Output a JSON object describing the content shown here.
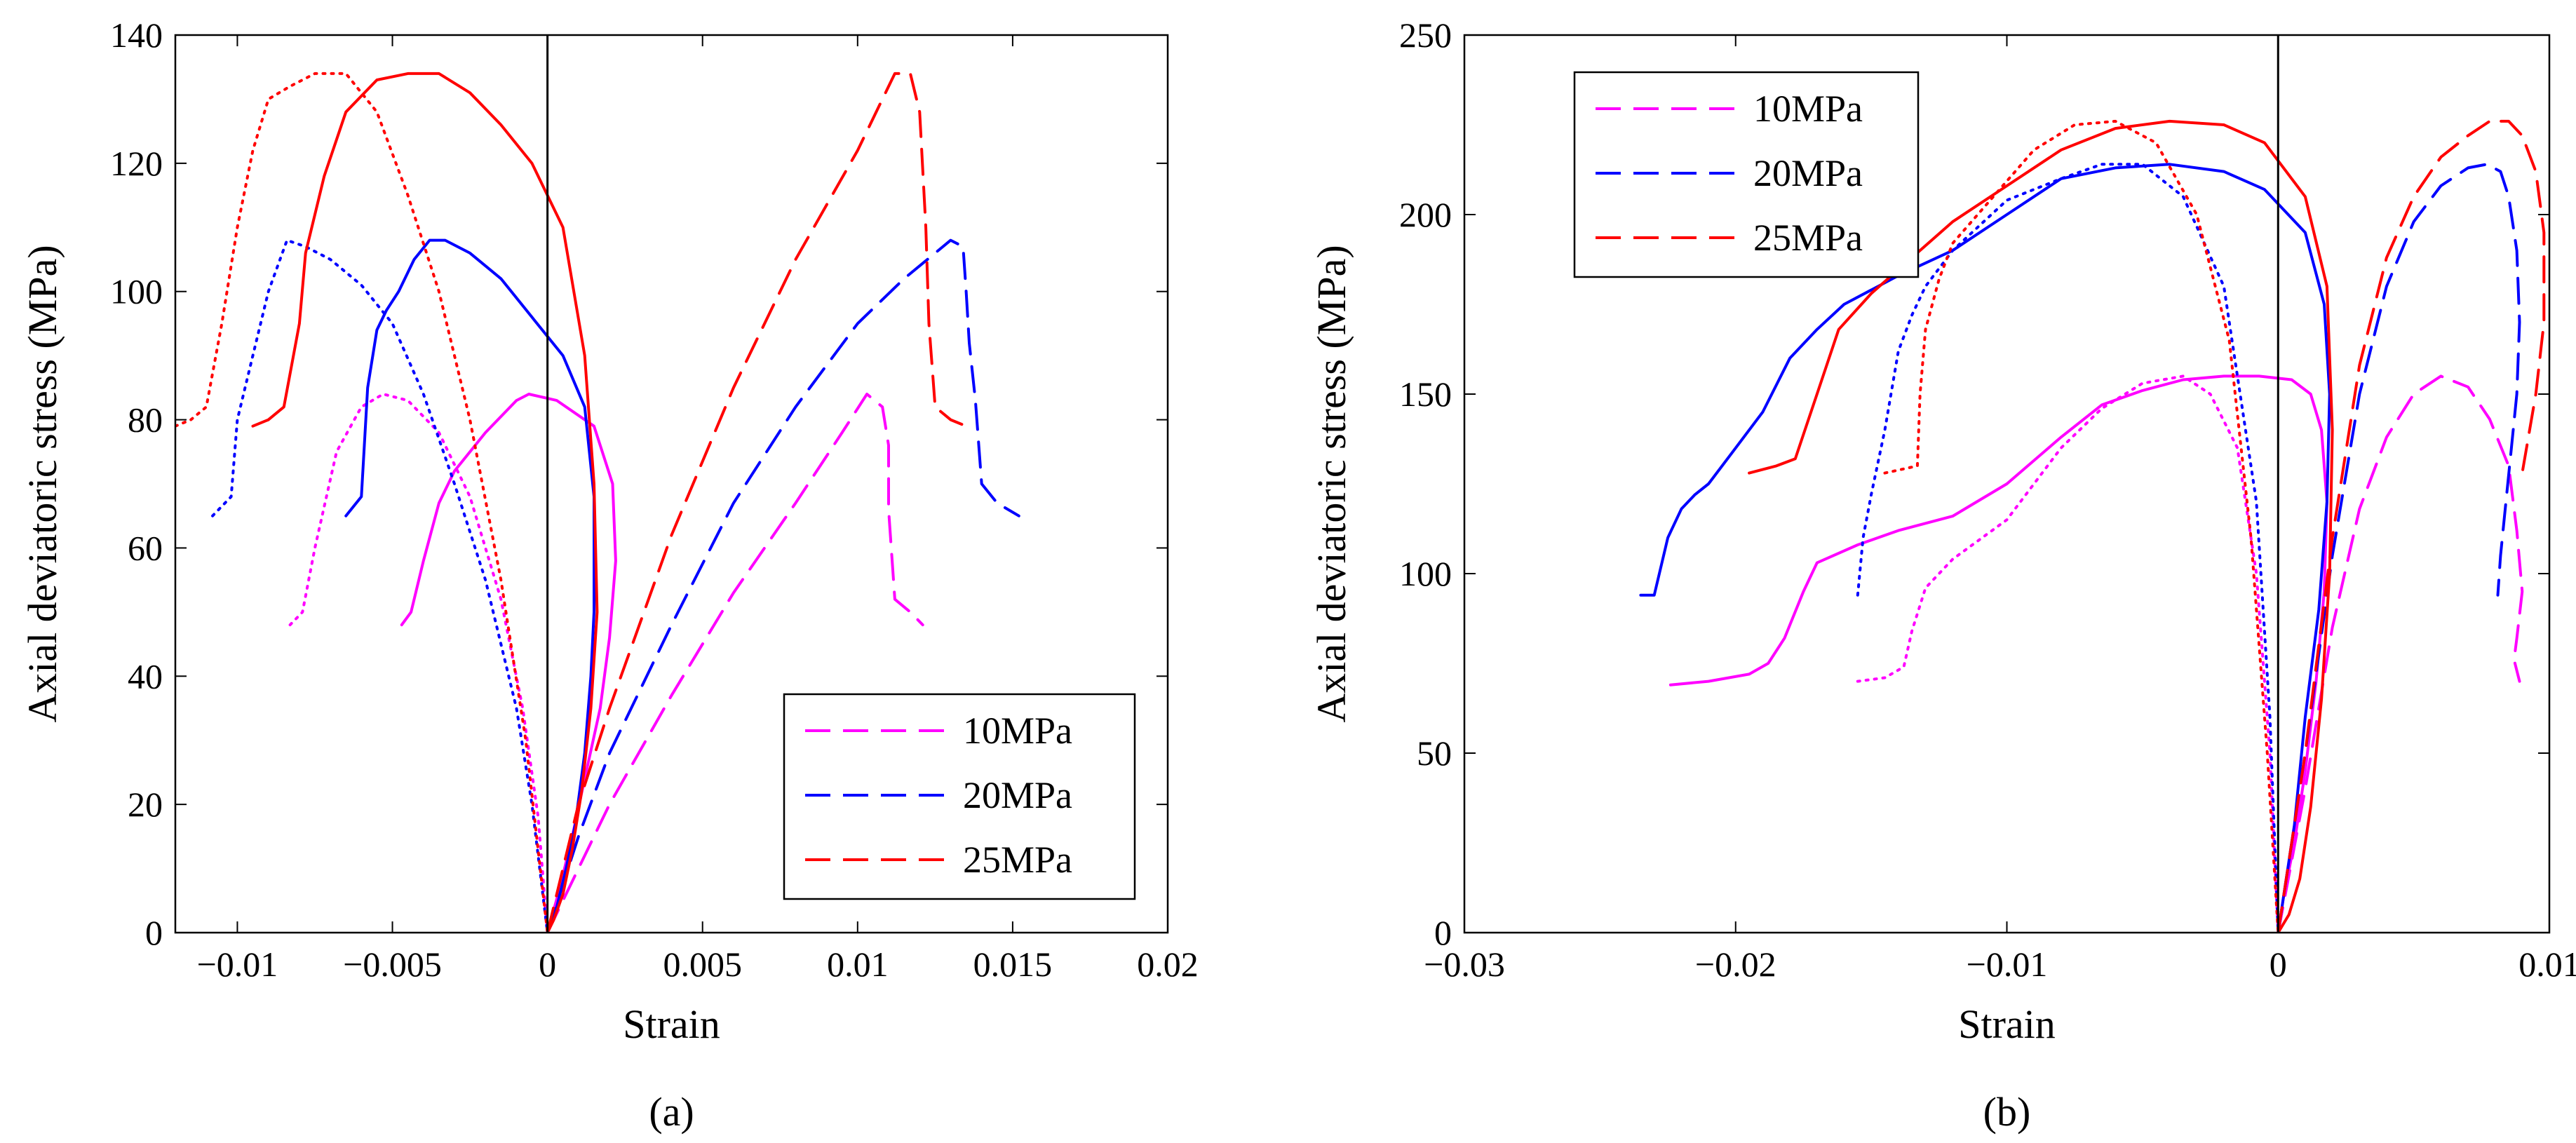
{
  "chart_data": [
    {
      "type": "line",
      "caption": "(a)",
      "xlabel": "Strain",
      "ylabel": "Axial deviatoric stress (MPa)",
      "xlim": [
        -0.012,
        0.02
      ],
      "ylim": [
        0,
        140
      ],
      "xticks": [
        -0.01,
        -0.005,
        0,
        0.005,
        0.01,
        0.015,
        0.02
      ],
      "xtick_labels": [
        "-0.01",
        "-0.005",
        "0",
        "0.005",
        "0.01",
        "0.015",
        "0.02"
      ],
      "yticks": [
        0,
        20,
        40,
        60,
        80,
        100,
        120,
        140
      ],
      "ytick_labels": [
        "0",
        "20",
        "40",
        "60",
        "80",
        "100",
        "120",
        "140"
      ],
      "legend": {
        "position": "lower-right",
        "entries": [
          {
            "label": "10MPa",
            "color": "#ff00ff"
          },
          {
            "label": "20MPa",
            "color": "#0000ff"
          },
          {
            "label": "25MPa",
            "color": "#ff0000"
          }
        ]
      },
      "zero_line": 0,
      "series": [
        {
          "name": "10MPa",
          "style": "dashed",
          "color": "#ff00ff",
          "x": [
            0,
            0.001,
            0.002,
            0.004,
            0.006,
            0.008,
            0.0095,
            0.0103,
            0.0108,
            0.011,
            0.011,
            0.0112,
            0.0117,
            0.0121
          ],
          "y": [
            0,
            10,
            20,
            37,
            53,
            67,
            78,
            84,
            82,
            76,
            66,
            52,
            50,
            48
          ]
        },
        {
          "name": "10MPa",
          "style": "solid",
          "color": "#ff00ff",
          "x": [
            -0.0047,
            -0.0044,
            -0.004,
            -0.0035,
            -0.003,
            -0.002,
            -0.001,
            -0.0006,
            0.0003,
            0.0015,
            0.0021,
            0.0022,
            0.002,
            0.0017,
            0.0012,
            0.0008,
            0.0004,
            0
          ],
          "y": [
            48,
            50,
            58,
            67,
            72,
            78,
            83,
            84,
            83,
            79,
            70,
            58,
            46,
            35,
            24,
            15,
            7,
            0
          ]
        },
        {
          "name": "10MPa",
          "style": "dotted",
          "color": "#ff00ff",
          "x": [
            -0.0083,
            -0.0079,
            -0.0075,
            -0.0068,
            -0.006,
            -0.0053,
            -0.0045,
            -0.0035,
            -0.0025,
            -0.0015,
            -0.0008,
            -0.0003,
            0
          ],
          "y": [
            48,
            50,
            60,
            75,
            82,
            84,
            83,
            78,
            68,
            52,
            35,
            18,
            0
          ]
        },
        {
          "name": "20MPa",
          "style": "dashed",
          "color": "#0000ff",
          "x": [
            0,
            0.001,
            0.002,
            0.004,
            0.006,
            0.008,
            0.01,
            0.0115,
            0.0125,
            0.013,
            0.0134,
            0.0135,
            0.0136,
            0.0138,
            0.014,
            0.0145,
            0.0152
          ],
          "y": [
            0,
            15,
            28,
            48,
            67,
            82,
            95,
            102,
            106,
            108,
            107,
            100,
            92,
            83,
            70,
            67,
            65
          ]
        },
        {
          "name": "20MPa",
          "style": "solid",
          "color": "#0000ff",
          "x": [
            -0.0065,
            -0.006,
            -0.0058,
            -0.0055,
            -0.0052,
            -0.0048,
            -0.0043,
            -0.0038,
            -0.0033,
            -0.0025,
            -0.0015,
            -0.0005,
            0.0005,
            0.0012,
            0.0015,
            0.0015,
            0.0014,
            0.0012,
            0.0009,
            0.0006,
            0.0003,
            0
          ],
          "y": [
            65,
            68,
            85,
            94,
            97,
            100,
            105,
            108,
            108,
            106,
            102,
            96,
            90,
            82,
            68,
            50,
            40,
            28,
            17,
            10,
            4,
            0
          ]
        },
        {
          "name": "20MPa",
          "style": "dotted",
          "color": "#0000ff",
          "x": [
            -0.0108,
            -0.0102,
            -0.01,
            -0.0095,
            -0.009,
            -0.0084,
            -0.0078,
            -0.007,
            -0.006,
            -0.005,
            -0.004,
            -0.003,
            -0.002,
            -0.001,
            -0.0005,
            0
          ],
          "y": [
            65,
            68,
            80,
            90,
            100,
            108,
            107,
            105,
            101,
            95,
            84,
            70,
            55,
            35,
            20,
            0
          ]
        },
        {
          "name": "25MPa",
          "style": "dashed",
          "color": "#ff0000",
          "x": [
            0,
            0.001,
            0.002,
            0.004,
            0.006,
            0.008,
            0.01,
            0.0108,
            0.0112,
            0.0117,
            0.012,
            0.0122,
            0.0123,
            0.0125,
            0.013,
            0.0135
          ],
          "y": [
            0,
            20,
            35,
            62,
            85,
            105,
            122,
            130,
            134,
            134,
            128,
            110,
            95,
            82,
            80,
            79
          ]
        },
        {
          "name": "25MPa",
          "style": "solid",
          "color": "#ff0000",
          "x": [
            -0.0095,
            -0.009,
            -0.0085,
            -0.008,
            -0.0078,
            -0.0072,
            -0.0065,
            -0.0055,
            -0.0045,
            -0.0035,
            -0.0025,
            -0.0015,
            -0.0005,
            0.0005,
            0.0012,
            0.0015,
            0.0016,
            0.0014,
            0.0011,
            0.0008,
            0.0005,
            0.0002,
            0
          ],
          "y": [
            79,
            80,
            82,
            95,
            106,
            118,
            128,
            133,
            134,
            134,
            131,
            126,
            120,
            110,
            90,
            70,
            50,
            35,
            22,
            13,
            6,
            2,
            0
          ]
        },
        {
          "name": "25MPa",
          "style": "dotted",
          "color": "#ff0000",
          "x": [
            -0.012,
            -0.0115,
            -0.011,
            -0.0105,
            -0.01,
            -0.0095,
            -0.009,
            -0.0083,
            -0.0075,
            -0.0065,
            -0.0055,
            -0.0045,
            -0.0035,
            -0.0025,
            -0.0015,
            -0.0007,
            0
          ],
          "y": [
            79,
            80,
            82,
            95,
            110,
            122,
            130,
            132,
            134,
            134,
            128,
            115,
            100,
            80,
            55,
            30,
            0
          ]
        }
      ]
    },
    {
      "type": "line",
      "caption": "(b)",
      "xlabel": "Strain",
      "ylabel": "Axial deviatoric stress (MPa)",
      "xlim": [
        -0.03,
        0.01
      ],
      "ylim": [
        0,
        250
      ],
      "xticks": [
        -0.03,
        -0.02,
        -0.01,
        0,
        0.01
      ],
      "xtick_labels": [
        "-0.03",
        "-0.02",
        "-0.01",
        "0",
        "0.01"
      ],
      "yticks": [
        0,
        50,
        100,
        150,
        200,
        250
      ],
      "ytick_labels": [
        "0",
        "50",
        "100",
        "150",
        "200",
        "250"
      ],
      "legend": {
        "position": "top-left",
        "entries": [
          {
            "label": "10MPa",
            "color": "#ff00ff"
          },
          {
            "label": "20MPa",
            "color": "#0000ff"
          },
          {
            "label": "25MPa",
            "color": "#ff0000"
          }
        ]
      },
      "zero_line": 0,
      "series": [
        {
          "name": "10MPa",
          "style": "dashed",
          "color": "#ff00ff",
          "x": [
            0,
            0.001,
            0.002,
            0.003,
            0.004,
            0.005,
            0.006,
            0.007,
            0.0078,
            0.0085,
            0.0088,
            0.009,
            0.0088,
            0.0087,
            0.0089
          ],
          "y": [
            0,
            40,
            85,
            118,
            138,
            150,
            155,
            152,
            143,
            130,
            112,
            95,
            82,
            76,
            70
          ]
        },
        {
          "name": "10MPa",
          "style": "solid",
          "color": "#ff00ff",
          "x": [
            -0.0224,
            -0.021,
            -0.0195,
            -0.0188,
            -0.0182,
            -0.0175,
            -0.017,
            -0.0155,
            -0.014,
            -0.012,
            -0.01,
            -0.008,
            -0.0065,
            -0.005,
            -0.0035,
            -0.002,
            -0.0007,
            0.0005,
            0.0012,
            0.0016,
            0.0018,
            0.0017,
            0.0014,
            0.001,
            0.0006,
            0.0002,
            0
          ],
          "y": [
            69,
            70,
            72,
            75,
            82,
            95,
            103,
            108,
            112,
            116,
            125,
            138,
            147,
            151,
            154,
            155,
            155,
            154,
            150,
            140,
            120,
            95,
            70,
            45,
            25,
            10,
            0
          ]
        },
        {
          "name": "10MPa",
          "style": "dotted",
          "color": "#ff00ff",
          "x": [
            -0.0155,
            -0.0145,
            -0.0138,
            -0.0135,
            -0.013,
            -0.012,
            -0.01,
            -0.008,
            -0.0065,
            -0.005,
            -0.0035,
            -0.0025,
            -0.0015,
            -0.0008,
            -0.0003,
            0
          ],
          "y": [
            70,
            71,
            74,
            84,
            96,
            104,
            115,
            135,
            146,
            153,
            155,
            150,
            135,
            100,
            50,
            0
          ]
        },
        {
          "name": "20MPa",
          "style": "dashed",
          "color": "#0000ff",
          "x": [
            0,
            0.001,
            0.002,
            0.003,
            0.004,
            0.005,
            0.006,
            0.007,
            0.0077,
            0.0082,
            0.0085,
            0.0088,
            0.0089,
            0.0088,
            0.0086,
            0.0084,
            0.0082,
            0.0081
          ],
          "y": [
            0,
            50,
            105,
            150,
            180,
            198,
            208,
            213,
            214,
            212,
            205,
            190,
            170,
            150,
            135,
            120,
            105,
            94
          ]
        },
        {
          "name": "20MPa",
          "style": "solid",
          "color": "#0000ff",
          "x": [
            -0.0235,
            -0.023,
            -0.0225,
            -0.022,
            -0.0215,
            -0.021,
            -0.02,
            -0.019,
            -0.018,
            -0.017,
            -0.016,
            -0.014,
            -0.012,
            -0.01,
            -0.008,
            -0.006,
            -0.004,
            -0.002,
            -0.0005,
            0.001,
            0.0017,
            0.0019,
            0.0018,
            0.0015,
            0.001,
            0.0006,
            0.0002,
            0
          ],
          "y": [
            94,
            94,
            110,
            118,
            122,
            125,
            135,
            145,
            160,
            168,
            175,
            183,
            190,
            200,
            210,
            213,
            214,
            212,
            207,
            195,
            175,
            150,
            120,
            90,
            60,
            30,
            10,
            0
          ]
        },
        {
          "name": "20MPa",
          "style": "dotted",
          "color": "#0000ff",
          "x": [
            -0.0155,
            -0.0153,
            -0.015,
            -0.0145,
            -0.014,
            -0.0135,
            -0.013,
            -0.012,
            -0.01,
            -0.008,
            -0.0065,
            -0.005,
            -0.0035,
            -0.002,
            -0.0008,
            -0.0003,
            0
          ],
          "y": [
            94,
            110,
            122,
            140,
            162,
            172,
            180,
            190,
            204,
            210,
            214,
            214,
            205,
            180,
            120,
            60,
            0
          ]
        },
        {
          "name": "25MPa",
          "style": "dashed",
          "color": "#ff0000",
          "x": [
            0,
            0.001,
            0.002,
            0.003,
            0.004,
            0.005,
            0.006,
            0.007,
            0.0078,
            0.0085,
            0.009,
            0.0095,
            0.0098,
            0.0098,
            0.0095,
            0.009
          ],
          "y": [
            0,
            50,
            110,
            158,
            188,
            205,
            216,
            222,
            226,
            226,
            222,
            212,
            195,
            170,
            150,
            128
          ]
        },
        {
          "name": "25MPa",
          "style": "solid",
          "color": "#ff0000",
          "x": [
            -0.0195,
            -0.0185,
            -0.0178,
            -0.017,
            -0.0162,
            -0.015,
            -0.0135,
            -0.012,
            -0.01,
            -0.008,
            -0.006,
            -0.004,
            -0.002,
            -0.0005,
            0.001,
            0.0018,
            0.002,
            0.0019,
            0.0016,
            0.0012,
            0.0008,
            0.0004,
            0
          ],
          "y": [
            128,
            130,
            132,
            150,
            168,
            178,
            188,
            198,
            208,
            218,
            224,
            226,
            225,
            220,
            205,
            180,
            140,
            100,
            65,
            35,
            15,
            5,
            0
          ]
        },
        {
          "name": "25MPa",
          "style": "dotted",
          "color": "#ff0000",
          "x": [
            -0.0145,
            -0.0133,
            -0.0132,
            -0.013,
            -0.0125,
            -0.012,
            -0.0105,
            -0.009,
            -0.0075,
            -0.006,
            -0.0045,
            -0.003,
            -0.0018,
            -0.001,
            -0.0004,
            0
          ],
          "y": [
            128,
            130,
            150,
            168,
            182,
            192,
            205,
            218,
            225,
            226,
            220,
            200,
            165,
            110,
            50,
            0
          ]
        }
      ]
    }
  ]
}
